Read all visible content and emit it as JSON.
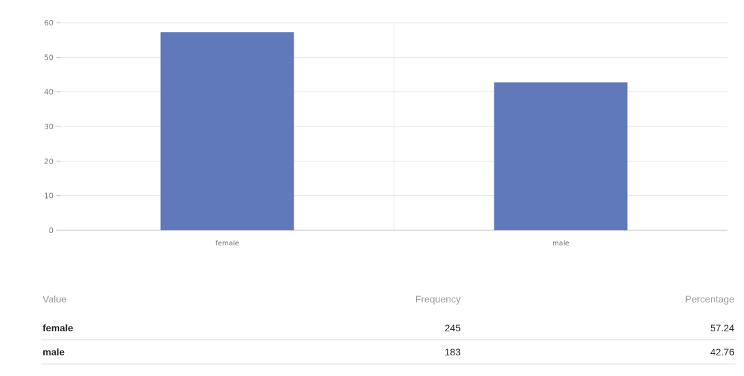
{
  "chart_data": {
    "type": "bar",
    "categories": [
      "female",
      "male"
    ],
    "values": [
      57.24,
      42.76
    ],
    "ylim": [
      0,
      60
    ],
    "yticks": [
      0,
      10,
      20,
      30,
      40,
      50,
      60
    ],
    "grid": true,
    "legend": "none",
    "bar_color": "#6079bb"
  },
  "table": {
    "headers": {
      "value": "Value",
      "frequency": "Frequency",
      "percentage": "Percentage"
    },
    "rows": [
      {
        "value": "female",
        "frequency": "245",
        "percentage": "57.24"
      },
      {
        "value": "male",
        "frequency": "183",
        "percentage": "42.76"
      }
    ]
  }
}
